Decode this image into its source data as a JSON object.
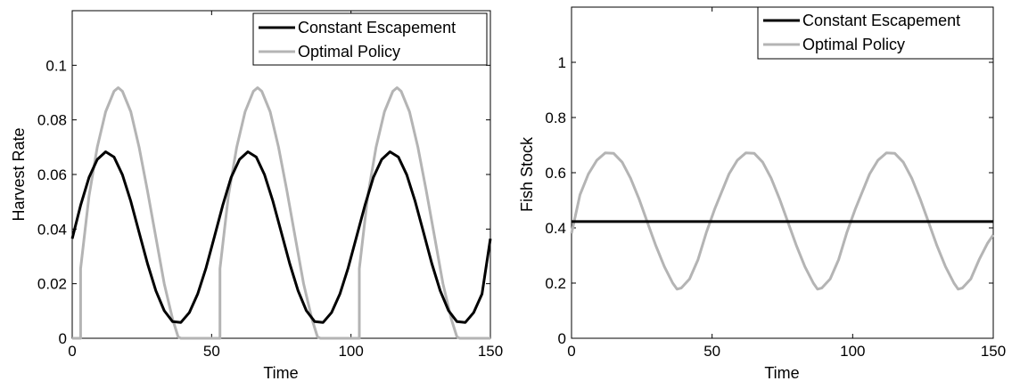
{
  "colors": {
    "constant_escapement": "#000000",
    "optimal_policy": "#b4b4b4",
    "axes": "#000000",
    "background": "#ffffff"
  },
  "chart_data": [
    {
      "type": "line",
      "title": "",
      "xlabel": "Time",
      "ylabel": "Harvest Rate",
      "xlim": [
        0,
        150
      ],
      "ylim": [
        0,
        0.12
      ],
      "xticks": [
        0,
        50,
        100,
        150
      ],
      "xtick_labels": [
        "0",
        "50",
        "100",
        "150"
      ],
      "yticks": [
        0,
        0.02,
        0.04,
        0.06,
        0.08,
        0.1
      ],
      "ytick_labels": [
        "0",
        "0.02",
        "0.04",
        "0.06",
        "0.08",
        "0.1"
      ],
      "grid": false,
      "legend": {
        "position": "top-right",
        "entries": [
          "Constant Escapement",
          "Optimal Policy"
        ]
      },
      "series": [
        {
          "name": "Constant Escapement",
          "color": "#000000",
          "x": [
            0,
            3,
            6,
            9,
            12,
            15,
            18,
            21,
            24,
            27,
            30,
            33,
            36,
            39,
            42,
            45,
            48,
            51,
            54,
            57,
            60,
            63,
            66,
            69,
            72,
            75,
            78,
            81,
            84,
            87,
            90,
            93,
            96,
            99,
            102,
            105,
            108,
            111,
            114,
            117,
            120,
            123,
            126,
            129,
            132,
            135,
            138,
            141,
            144,
            147,
            150
          ],
          "y": [
            0.0365,
            0.0487,
            0.0589,
            0.0655,
            0.0683,
            0.0664,
            0.0599,
            0.0502,
            0.0388,
            0.0274,
            0.0174,
            0.0101,
            0.0061,
            0.0058,
            0.0094,
            0.0162,
            0.0258,
            0.0372,
            0.0487,
            0.0589,
            0.0655,
            0.0683,
            0.0664,
            0.0599,
            0.0502,
            0.0388,
            0.0274,
            0.0174,
            0.0101,
            0.0061,
            0.0058,
            0.0094,
            0.0162,
            0.0258,
            0.0372,
            0.0487,
            0.0589,
            0.0655,
            0.0683,
            0.0664,
            0.0599,
            0.0502,
            0.0388,
            0.0274,
            0.0174,
            0.0101,
            0.0061,
            0.0058,
            0.0094,
            0.0162,
            0.0365
          ]
        },
        {
          "name": "Optimal Policy",
          "color": "#b4b4b4",
          "x": [
            0,
            3,
            3,
            6,
            9,
            12,
            15,
            16.5,
            18,
            21,
            24,
            27,
            30,
            33,
            36,
            38,
            39,
            50,
            53,
            53,
            56,
            59,
            62,
            65,
            66.5,
            68,
            71,
            74,
            77,
            80,
            83,
            86,
            88,
            89,
            100,
            103,
            103,
            106,
            109,
            112,
            115,
            116.5,
            118,
            121,
            124,
            127,
            130,
            133,
            136,
            138,
            139,
            150
          ],
          "y": [
            0,
            0,
            0.0255,
            0.052,
            0.07,
            0.083,
            0.0905,
            0.0918,
            0.0905,
            0.083,
            0.07,
            0.054,
            0.037,
            0.02,
            0.007,
            0.0005,
            0,
            0,
            0,
            0.0255,
            0.052,
            0.07,
            0.083,
            0.0905,
            0.0918,
            0.0905,
            0.083,
            0.07,
            0.054,
            0.037,
            0.02,
            0.007,
            0.0005,
            0,
            0,
            0,
            0.0255,
            0.052,
            0.07,
            0.083,
            0.0905,
            0.0918,
            0.0905,
            0.083,
            0.07,
            0.054,
            0.037,
            0.02,
            0.007,
            0.0005,
            0,
            0
          ]
        }
      ]
    },
    {
      "type": "line",
      "title": "",
      "xlabel": "Time",
      "ylabel": "Fish Stock",
      "xlim": [
        0,
        150
      ],
      "ylim": [
        0,
        1.2
      ],
      "xticks": [
        0,
        50,
        100,
        150
      ],
      "xtick_labels": [
        "0",
        "50",
        "100",
        "150"
      ],
      "yticks": [
        0,
        0.2,
        0.4,
        0.6,
        0.8,
        1
      ],
      "ytick_labels": [
        "0",
        "0.2",
        "0.4",
        "0.6",
        "0.8",
        "1"
      ],
      "grid": false,
      "legend": {
        "position": "top-right",
        "entries": [
          "Constant Escapement",
          "Optimal Policy"
        ]
      },
      "series": [
        {
          "name": "Constant Escapement",
          "color": "#000000",
          "x": [
            0,
            150
          ],
          "y": [
            0.423,
            0.423
          ]
        },
        {
          "name": "Optimal Policy",
          "color": "#b4b4b4",
          "x": [
            0,
            3,
            6,
            9,
            12,
            15,
            18,
            21,
            24,
            27,
            30,
            33,
            36,
            37.5,
            39,
            42,
            45,
            48,
            51,
            53,
            56,
            59,
            62,
            65,
            68,
            71,
            74,
            77,
            80,
            83,
            86,
            87.5,
            89,
            92,
            95,
            98,
            101,
            103,
            106,
            109,
            112,
            115,
            118,
            121,
            124,
            127,
            130,
            133,
            136,
            137.5,
            139,
            142,
            145,
            148,
            150
          ],
          "y": [
            0.38,
            0.52,
            0.595,
            0.645,
            0.672,
            0.67,
            0.638,
            0.58,
            0.505,
            0.42,
            0.335,
            0.26,
            0.2,
            0.178,
            0.182,
            0.215,
            0.285,
            0.385,
            0.47,
            0.52,
            0.595,
            0.645,
            0.672,
            0.67,
            0.638,
            0.58,
            0.505,
            0.42,
            0.335,
            0.26,
            0.2,
            0.178,
            0.182,
            0.215,
            0.285,
            0.385,
            0.47,
            0.52,
            0.595,
            0.645,
            0.672,
            0.67,
            0.638,
            0.58,
            0.505,
            0.42,
            0.335,
            0.26,
            0.2,
            0.178,
            0.182,
            0.215,
            0.285,
            0.345,
            0.375
          ]
        }
      ]
    }
  ]
}
